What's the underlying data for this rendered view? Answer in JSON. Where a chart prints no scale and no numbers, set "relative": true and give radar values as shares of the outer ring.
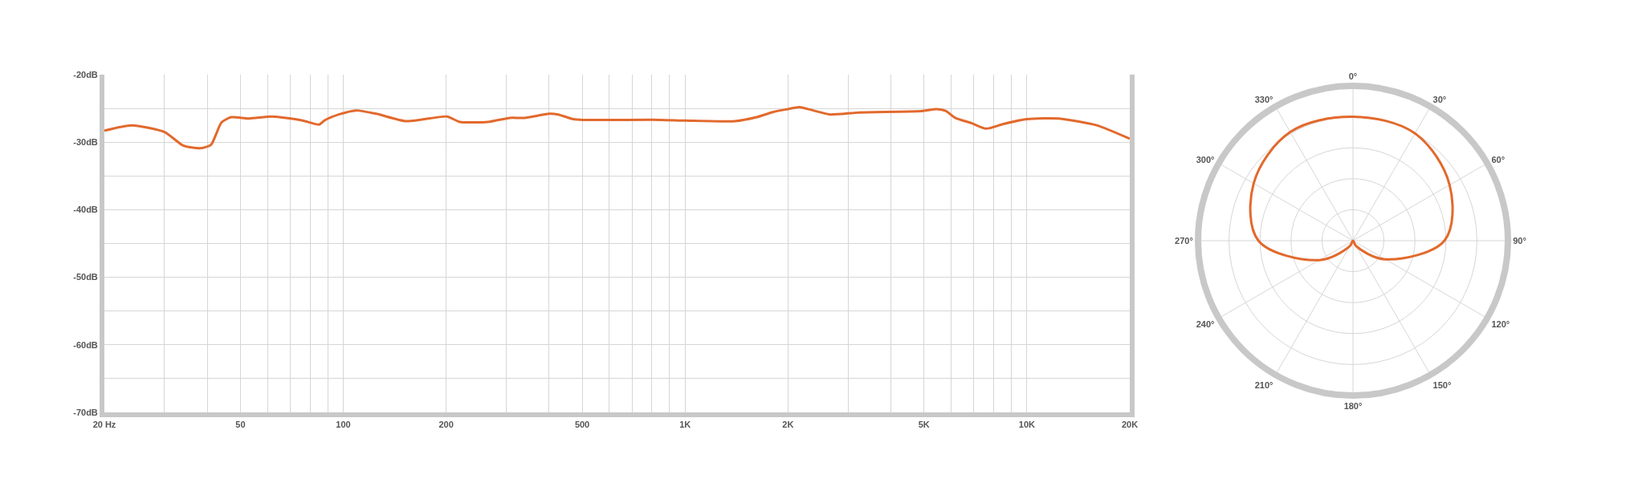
{
  "chart_data": [
    {
      "type": "line",
      "log": "x",
      "grid": true,
      "x": [
        20,
        24,
        30,
        34,
        38,
        41,
        44,
        47,
        53,
        62,
        76,
        85,
        88,
        97,
        109,
        125,
        153,
        201,
        219,
        265,
        307,
        339,
        400,
        425,
        471,
        506,
        844,
        1000,
        1400,
        1620,
        1820,
        2000,
        2160,
        2370,
        2660,
        3230,
        4900,
        5450,
        5800,
        6170,
        6900,
        7600,
        8550,
        10000,
        12400,
        16000,
        20000
      ],
      "series": [
        {
          "color": "#e2692c",
          "values": [
            -28.3,
            -27.5,
            -28.5,
            -30.5,
            -30.9,
            -30.4,
            -27.1,
            -26.3,
            -26.5,
            -26.2,
            -26.8,
            -27.4,
            -26.8,
            -25.9,
            -25.3,
            -25.8,
            -26.9,
            -26.2,
            -27.0,
            -27.0,
            -26.4,
            -26.4,
            -25.8,
            -25.9,
            -26.6,
            -26.7,
            -26.7,
            -26.8,
            -26.9,
            -26.3,
            -25.5,
            -25.1,
            -24.8,
            -25.3,
            -25.9,
            -25.6,
            -25.4,
            -25.1,
            -25.4,
            -26.4,
            -27.2,
            -28.0,
            -27.3,
            -26.6,
            -26.5,
            -27.5,
            -29.5
          ]
        }
      ],
      "xlim": [
        20,
        20000
      ],
      "xticks": [
        {
          "value": 20,
          "label": "20 Hz"
        },
        {
          "value": 30,
          "label": null
        },
        {
          "value": 40,
          "label": null
        },
        50,
        {
          "value": 60,
          "label": null
        },
        {
          "value": 70,
          "label": null
        },
        {
          "value": 80,
          "label": null
        },
        {
          "value": 90,
          "label": null
        },
        100,
        200,
        {
          "value": 300,
          "label": null
        },
        {
          "value": 400,
          "label": null
        },
        500,
        {
          "value": 600,
          "label": null
        },
        {
          "value": 700,
          "label": null
        },
        {
          "value": 800,
          "label": null
        },
        {
          "value": 900,
          "label": null
        },
        {
          "value": 1000,
          "label": "1K"
        },
        {
          "value": 2000,
          "label": "2K"
        },
        {
          "value": 3000,
          "label": null
        },
        {
          "value": 4000,
          "label": null
        },
        {
          "value": 5000,
          "label": "5K"
        },
        {
          "value": 6000,
          "label": null
        },
        {
          "value": 7000,
          "label": null
        },
        {
          "value": 8000,
          "label": null
        },
        {
          "value": 9000,
          "label": null
        },
        {
          "value": 10000,
          "label": "10K"
        },
        {
          "value": 20000,
          "label": "20K"
        }
      ],
      "ylim": [
        -70,
        -20
      ],
      "yticks": [
        {
          "value": -20,
          "label": "-20dB"
        },
        {
          "value": -25,
          "label": null
        },
        {
          "value": -30,
          "label": "-30dB"
        },
        {
          "value": -35,
          "label": null
        },
        {
          "value": -40,
          "label": "-40dB"
        },
        {
          "value": -45,
          "label": null
        },
        {
          "value": -50,
          "label": "-50dB"
        },
        {
          "value": -55,
          "label": null
        },
        {
          "value": -60,
          "label": "-60dB"
        },
        {
          "value": -65,
          "label": null
        },
        {
          "value": -70,
          "label": "-70dB"
        }
      ]
    },
    {
      "type": "radar",
      "relative": true,
      "grid": true,
      "categories": [
        "0°",
        "30°",
        "60°",
        "90°",
        "120°",
        "150°",
        "180°",
        "210°",
        "240°",
        "270°",
        "300°",
        "330°"
      ],
      "series": [
        {
          "color": "#e2692c",
          "values": [
            0.8,
            0.8,
            0.72,
            0.59,
            0.24,
            0.04,
            0,
            0.04,
            0.25,
            0.61,
            0.74,
            0.81
          ]
        }
      ]
    }
  ]
}
